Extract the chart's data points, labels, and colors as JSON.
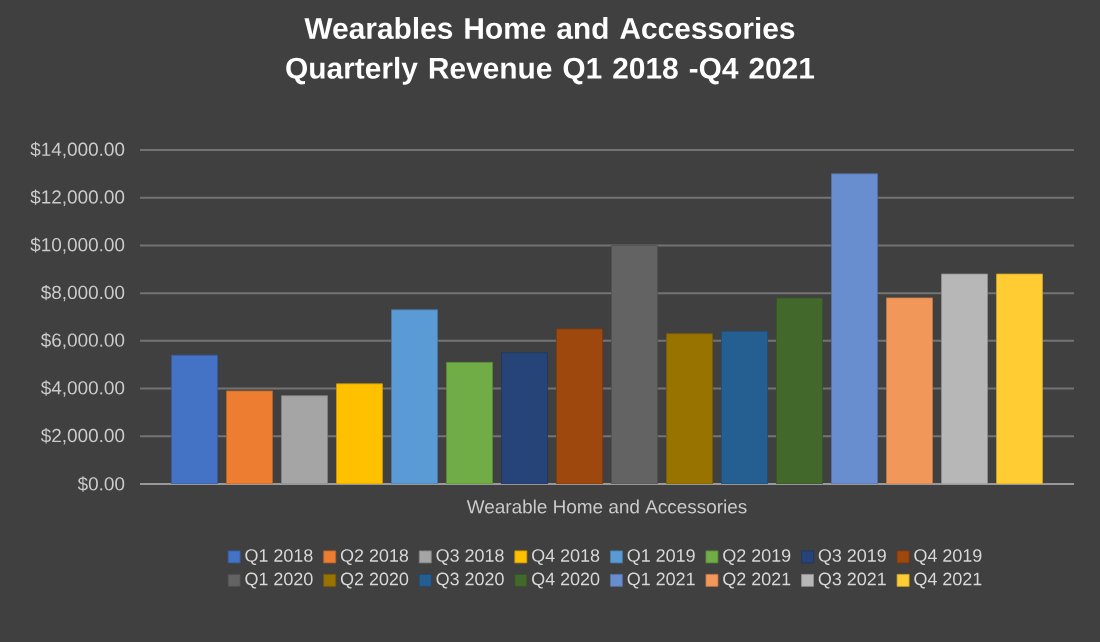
{
  "chart_data": {
    "type": "bar",
    "title": "Wearables Home and Accessories Quarterly Revenue Q1 2018  -Q4 2021",
    "categories": [
      "Wearable Home and Accessories"
    ],
    "series": [
      {
        "name": "Q1 2018",
        "color": "#4472c4",
        "values": [
          5400
        ]
      },
      {
        "name": "Q2 2018",
        "color": "#ed7d31",
        "values": [
          3900
        ]
      },
      {
        "name": "Q3 2018",
        "color": "#a5a5a5",
        "values": [
          3700
        ]
      },
      {
        "name": "Q4 2018",
        "color": "#ffc000",
        "values": [
          4200
        ]
      },
      {
        "name": "Q1 2019",
        "color": "#5b9bd5",
        "values": [
          7300
        ]
      },
      {
        "name": "Q2 2019",
        "color": "#70ad47",
        "values": [
          5100
        ]
      },
      {
        "name": "Q3 2019",
        "color": "#264478",
        "values": [
          5500
        ]
      },
      {
        "name": "Q4 2019",
        "color": "#9e480e",
        "values": [
          6500
        ]
      },
      {
        "name": "Q1 2020",
        "color": "#636363",
        "values": [
          10000
        ]
      },
      {
        "name": "Q2 2020",
        "color": "#997300",
        "values": [
          6300
        ]
      },
      {
        "name": "Q3 2020",
        "color": "#255e91",
        "values": [
          6400
        ]
      },
      {
        "name": "Q4 2020",
        "color": "#43682b",
        "values": [
          7800
        ]
      },
      {
        "name": "Q1 2021",
        "color": "#698ed0",
        "values": [
          13000
        ]
      },
      {
        "name": "Q2 2021",
        "color": "#f1975a",
        "values": [
          7800
        ]
      },
      {
        "name": "Q3 2021",
        "color": "#b7b7b7",
        "values": [
          8800
        ]
      },
      {
        "name": "Q4 2021",
        "color": "#ffcd33",
        "values": [
          8800
        ]
      }
    ],
    "ylim": [
      0,
      14000
    ],
    "yticks": [
      {
        "value": 0,
        "label": "$0.00"
      },
      {
        "value": 2000,
        "label": "$2,000.00"
      },
      {
        "value": 4000,
        "label": "$4,000.00"
      },
      {
        "value": 6000,
        "label": "$6,000.00"
      },
      {
        "value": 8000,
        "label": "$8,000.00"
      },
      {
        "value": 10000,
        "label": "$10,000.00"
      },
      {
        "value": 12000,
        "label": "$12,000.00"
      },
      {
        "value": 14000,
        "label": "$14,000.00"
      }
    ],
    "grid": "y",
    "legend": "bottom"
  }
}
